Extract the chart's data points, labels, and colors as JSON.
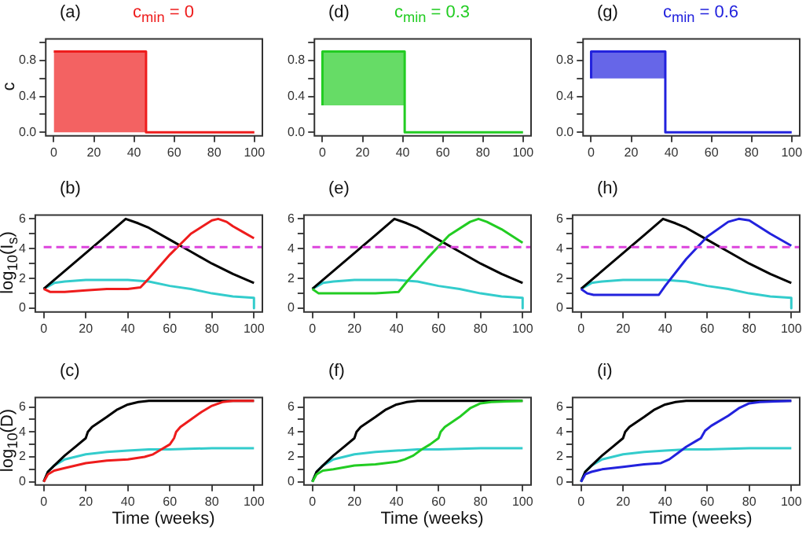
{
  "chart_data": [
    {
      "type": "area",
      "title": "(a)",
      "subtitle": "c$_{min}$ = 0",
      "ylabel": "c",
      "legend": false,
      "xlim": [
        -4,
        104
      ],
      "ylim": [
        -0.04,
        1.04
      ],
      "xticks": [
        0,
        20,
        40,
        60,
        80,
        100
      ],
      "yticks": [
        {
          "value": 0,
          "label": "0.0"
        },
        {
          "value": 0.2,
          "label": null
        },
        {
          "value": 0.4,
          "label": "0.4"
        },
        {
          "value": 0.6,
          "label": null
        },
        {
          "value": 0.8,
          "label": "0.8"
        },
        {
          "value": 1.0,
          "label": null
        }
      ],
      "series": [
        {
          "color": "#ee1c1c",
          "x": [
            0,
            46,
            46,
            100
          ],
          "values": [
            0.9,
            0.9,
            0,
            0
          ]
        }
      ]
    },
    {
      "type": "line",
      "title": "(d)",
      "subtitle": "c$_{min}$ = 0.3",
      "legend": false,
      "xlim": [
        -4,
        104
      ],
      "ylim": [
        -0.04,
        1.04
      ],
      "xticks": [
        0,
        20,
        40,
        60,
        80,
        100
      ],
      "yticks": [
        {
          "value": 0,
          "label": "0.0"
        },
        {
          "value": 0.2,
          "label": null
        },
        {
          "value": 0.4,
          "label": "0.4"
        },
        {
          "value": 0.6,
          "label": null
        },
        {
          "value": 0.8,
          "label": "0.8"
        },
        {
          "value": 1.0,
          "label": null
        }
      ],
      "series": [
        {
          "color": "#22cc22",
          "x": [
            0,
            0,
            41,
            41,
            100
          ],
          "values": [
            0.3,
            0.9,
            0.9,
            0,
            0
          ],
          "lower": [
            0.3,
            0.3,
            0.3,
            0,
            0
          ],
          "upper": [
            0.3,
            0.9,
            0.9,
            0,
            0
          ]
        }
      ]
    },
    {
      "type": "line",
      "title": "(g)",
      "subtitle": "c$_{min}$ = 0.6",
      "legend": false,
      "xlim": [
        -4,
        104
      ],
      "ylim": [
        -0.04,
        1.04
      ],
      "xticks": [
        0,
        20,
        40,
        60,
        80,
        100
      ],
      "yticks": [
        {
          "value": 0,
          "label": "0.0"
        },
        {
          "value": 0.2,
          "label": null
        },
        {
          "value": 0.4,
          "label": "0.4"
        },
        {
          "value": 0.6,
          "label": null
        },
        {
          "value": 0.8,
          "label": "0.8"
        },
        {
          "value": 1.0,
          "label": null
        }
      ],
      "series": [
        {
          "color": "#2222dd",
          "x": [
            0,
            0,
            37,
            37,
            100
          ],
          "values": [
            0.6,
            0.9,
            0.9,
            0,
            0
          ],
          "lower": [
            0.6,
            0.6,
            0.6,
            0,
            0
          ],
          "upper": [
            0.6,
            0.9,
            0.9,
            0,
            0
          ]
        }
      ]
    },
    {
      "type": "line",
      "title": "(b)",
      "ylabel": "log$_{10}$(I$_{s}$)",
      "legend": false,
      "xlim": [
        -4,
        104
      ],
      "ylim": [
        -0.25,
        6.25
      ],
      "xticks": [
        0,
        20,
        40,
        60,
        80,
        100
      ],
      "yticks": [
        0,
        {
          "value": 1,
          "label": null
        },
        2,
        {
          "value": 3,
          "label": null
        },
        4,
        {
          "value": 5,
          "label": null
        },
        6
      ],
      "ref_lines": [
        {
          "axis": "y",
          "value": 4.1,
          "color": "#dd44dd",
          "line_style": "dashed"
        }
      ],
      "series": [
        {
          "color": "#ee1c1c",
          "x": [
            0,
            3,
            10,
            20,
            30,
            40,
            46,
            50,
            60,
            70,
            80,
            83,
            87,
            90,
            95,
            100
          ],
          "values": [
            1.3,
            1.1,
            1.1,
            1.2,
            1.3,
            1.3,
            1.4,
            2.0,
            3.6,
            5.0,
            5.9,
            6.0,
            5.8,
            5.5,
            5.1,
            4.7
          ]
        },
        {
          "color": "#000000",
          "x": [
            0,
            10,
            20,
            30,
            39,
            45,
            50,
            60,
            70,
            80,
            90,
            100
          ],
          "values": [
            1.3,
            2.5,
            3.7,
            4.9,
            6.0,
            5.7,
            5.4,
            4.6,
            3.8,
            3.0,
            2.3,
            1.7
          ]
        },
        {
          "color": "#33cccc",
          "x": [
            0,
            5,
            10,
            20,
            30,
            40,
            50,
            60,
            70,
            80,
            90,
            100,
            100
          ],
          "values": [
            1.3,
            1.7,
            1.8,
            1.9,
            1.9,
            1.9,
            1.8,
            1.5,
            1.3,
            1.0,
            0.8,
            0.7,
            0
          ]
        }
      ]
    },
    {
      "type": "line",
      "title": "(e)",
      "legend": false,
      "xlim": [
        -4,
        104
      ],
      "ylim": [
        -0.25,
        6.25
      ],
      "xticks": [
        0,
        20,
        40,
        60,
        80,
        100
      ],
      "yticks": [
        0,
        {
          "value": 1,
          "label": null
        },
        2,
        {
          "value": 3,
          "label": null
        },
        4,
        {
          "value": 5,
          "label": null
        },
        6
      ],
      "ref_lines": [
        {
          "axis": "y",
          "value": 4.1,
          "color": "#dd44dd",
          "line_style": "dashed"
        }
      ],
      "series": [
        {
          "color": "#22cc22",
          "x": [
            0,
            3,
            10,
            20,
            30,
            41,
            45,
            55,
            65,
            75,
            79,
            83,
            90,
            100
          ],
          "values": [
            1.3,
            1.0,
            1.0,
            1.0,
            1.0,
            1.1,
            1.8,
            3.4,
            4.9,
            5.8,
            6.0,
            5.8,
            5.3,
            4.4
          ]
        },
        {
          "color": "#000000",
          "x": [
            0,
            10,
            20,
            30,
            39,
            45,
            50,
            60,
            70,
            80,
            90,
            100
          ],
          "values": [
            1.3,
            2.5,
            3.7,
            4.9,
            6.0,
            5.7,
            5.4,
            4.6,
            3.8,
            3.0,
            2.3,
            1.7
          ]
        },
        {
          "color": "#33cccc",
          "x": [
            0,
            5,
            10,
            20,
            30,
            40,
            50,
            60,
            70,
            80,
            90,
            100,
            100
          ],
          "values": [
            1.3,
            1.7,
            1.8,
            1.9,
            1.9,
            1.9,
            1.8,
            1.5,
            1.3,
            1.0,
            0.8,
            0.7,
            0
          ]
        }
      ]
    },
    {
      "type": "line",
      "title": "(h)",
      "legend": false,
      "xlim": [
        -4,
        104
      ],
      "ylim": [
        -0.25,
        6.25
      ],
      "xticks": [
        0,
        20,
        40,
        60,
        80,
        100
      ],
      "yticks": [
        0,
        {
          "value": 1,
          "label": null
        },
        2,
        {
          "value": 3,
          "label": null
        },
        4,
        {
          "value": 5,
          "label": null
        },
        6
      ],
      "ref_lines": [
        {
          "axis": "y",
          "value": 4.1,
          "color": "#dd44dd",
          "line_style": "dashed"
        }
      ],
      "series": [
        {
          "color": "#2222dd",
          "x": [
            0,
            3,
            6,
            20,
            37,
            40,
            50,
            60,
            70,
            75,
            80,
            90,
            100
          ],
          "values": [
            1.3,
            1.0,
            0.9,
            0.9,
            0.9,
            1.5,
            3.3,
            4.8,
            5.8,
            6.0,
            5.9,
            5.0,
            4.2
          ]
        },
        {
          "color": "#000000",
          "x": [
            0,
            10,
            20,
            30,
            39,
            45,
            50,
            60,
            70,
            80,
            90,
            100
          ],
          "values": [
            1.3,
            2.5,
            3.7,
            4.9,
            6.0,
            5.7,
            5.4,
            4.6,
            3.8,
            3.0,
            2.3,
            1.7
          ]
        },
        {
          "color": "#33cccc",
          "x": [
            0,
            5,
            10,
            20,
            30,
            40,
            50,
            60,
            70,
            80,
            90,
            100,
            100
          ],
          "values": [
            1.3,
            1.7,
            1.8,
            1.9,
            1.9,
            1.9,
            1.8,
            1.5,
            1.3,
            1.0,
            0.8,
            0.7,
            0
          ]
        }
      ]
    },
    {
      "type": "line",
      "title": "(c)",
      "xlabel": "Time (weeks)",
      "ylabel": "log$_{10}$(D)",
      "legend": false,
      "xlim": [
        -4,
        104
      ],
      "ylim": [
        -0.26,
        6.76
      ],
      "xticks": [
        0,
        20,
        40,
        60,
        80,
        100
      ],
      "yticks": [
        0,
        {
          "value": 1,
          "label": null
        },
        2,
        {
          "value": 3,
          "label": null
        },
        4,
        {
          "value": 5,
          "label": null
        },
        6
      ],
      "series": [
        {
          "color": "#ee1c1c",
          "x": [
            0,
            2,
            5,
            10,
            20,
            30,
            40,
            48,
            52,
            55,
            60,
            62,
            63,
            65,
            70,
            75,
            80,
            85,
            90,
            100
          ],
          "values": [
            0,
            0.6,
            0.9,
            1.1,
            1.5,
            1.7,
            1.8,
            2.0,
            2.2,
            2.5,
            3.0,
            3.5,
            4.0,
            4.4,
            5.0,
            5.6,
            6.1,
            6.4,
            6.5,
            6.5
          ]
        },
        {
          "color": "#000000",
          "x": [
            0,
            2,
            5,
            10,
            15,
            20,
            21,
            23,
            30,
            35,
            40,
            45,
            50,
            100
          ],
          "values": [
            0,
            0.8,
            1.3,
            2.1,
            2.8,
            3.5,
            4.0,
            4.4,
            5.2,
            5.8,
            6.2,
            6.4,
            6.5,
            6.5
          ]
        },
        {
          "color": "#33cccc",
          "x": [
            0,
            2,
            5,
            10,
            20,
            30,
            40,
            50,
            60,
            80,
            100
          ],
          "values": [
            0,
            0.8,
            1.3,
            1.8,
            2.2,
            2.4,
            2.5,
            2.6,
            2.6,
            2.7,
            2.7
          ]
        }
      ]
    },
    {
      "type": "line",
      "title": "(f)",
      "xlabel": "Time (weeks)",
      "legend": false,
      "xlim": [
        -4,
        104
      ],
      "ylim": [
        -0.26,
        6.76
      ],
      "xticks": [
        0,
        20,
        40,
        60,
        80,
        100
      ],
      "yticks": [
        0,
        {
          "value": 1,
          "label": null
        },
        2,
        {
          "value": 3,
          "label": null
        },
        4,
        {
          "value": 5,
          "label": null
        },
        6
      ],
      "series": [
        {
          "color": "#22cc22",
          "x": [
            0,
            2,
            5,
            10,
            20,
            30,
            40,
            44,
            48,
            52,
            56,
            60,
            61,
            63,
            70,
            75,
            80,
            85,
            100
          ],
          "values": [
            0,
            0.6,
            0.9,
            1.0,
            1.3,
            1.4,
            1.6,
            1.8,
            2.1,
            2.6,
            3.0,
            3.5,
            4.0,
            4.4,
            5.2,
            5.9,
            6.3,
            6.4,
            6.5
          ]
        },
        {
          "color": "#000000",
          "x": [
            0,
            2,
            5,
            10,
            15,
            20,
            21,
            23,
            30,
            35,
            40,
            45,
            50,
            100
          ],
          "values": [
            0,
            0.8,
            1.3,
            2.1,
            2.8,
            3.5,
            4.0,
            4.4,
            5.2,
            5.8,
            6.2,
            6.4,
            6.5,
            6.5
          ]
        },
        {
          "color": "#33cccc",
          "x": [
            0,
            2,
            5,
            10,
            20,
            30,
            40,
            50,
            60,
            80,
            100
          ],
          "values": [
            0,
            0.8,
            1.3,
            1.8,
            2.2,
            2.4,
            2.5,
            2.6,
            2.6,
            2.7,
            2.7
          ]
        }
      ]
    },
    {
      "type": "line",
      "title": "(i)",
      "xlabel": "Time (weeks)",
      "legend": false,
      "xlim": [
        -4,
        104
      ],
      "ylim": [
        -0.26,
        6.76
      ],
      "xticks": [
        0,
        20,
        40,
        60,
        80,
        100
      ],
      "yticks": [
        0,
        {
          "value": 1,
          "label": null
        },
        2,
        {
          "value": 3,
          "label": null
        },
        4,
        {
          "value": 5,
          "label": null
        },
        6
      ],
      "series": [
        {
          "color": "#2222dd",
          "x": [
            0,
            2,
            5,
            10,
            20,
            30,
            38,
            42,
            46,
            50,
            55,
            57,
            59,
            62,
            70,
            75,
            80,
            85,
            100
          ],
          "values": [
            0,
            0.6,
            0.8,
            1.0,
            1.2,
            1.4,
            1.5,
            1.8,
            2.3,
            2.8,
            3.3,
            3.5,
            4.1,
            4.5,
            5.3,
            5.9,
            6.3,
            6.4,
            6.5
          ]
        },
        {
          "color": "#000000",
          "x": [
            0,
            2,
            5,
            10,
            15,
            20,
            21,
            23,
            30,
            35,
            40,
            45,
            50,
            100
          ],
          "values": [
            0,
            0.8,
            1.3,
            2.1,
            2.8,
            3.5,
            4.0,
            4.4,
            5.2,
            5.8,
            6.2,
            6.4,
            6.5,
            6.5
          ]
        },
        {
          "color": "#33cccc",
          "x": [
            0,
            2,
            5,
            10,
            20,
            30,
            40,
            50,
            60,
            80,
            100
          ],
          "values": [
            0,
            0.8,
            1.3,
            1.8,
            2.2,
            2.4,
            2.5,
            2.6,
            2.6,
            2.7,
            2.7
          ]
        }
      ]
    }
  ]
}
